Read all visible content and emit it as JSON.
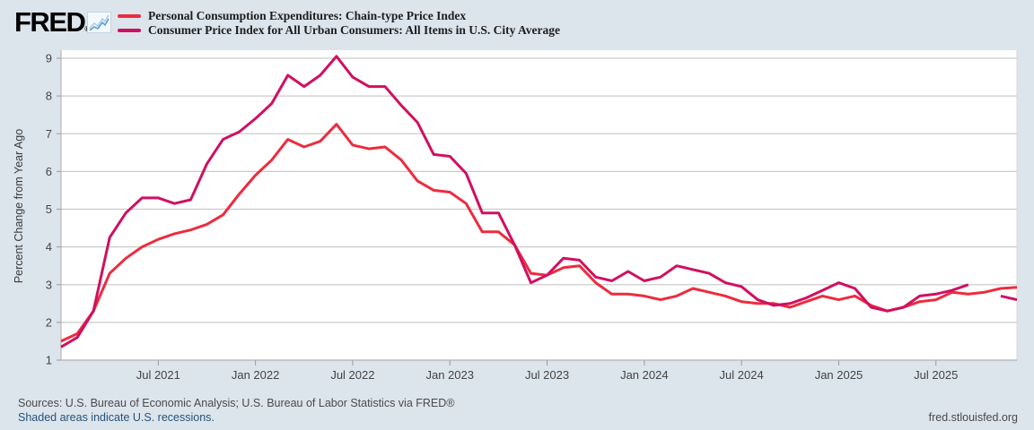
{
  "header": {
    "logo_text": "FRED",
    "registered_mark": "®"
  },
  "legend": {
    "items": [
      {
        "label": "Personal Consumption Expenditures: Chain-type Price Index",
        "color": "#ee2b3e"
      },
      {
        "label": "Consumer Price Index for All Urban Consumers: All Items in U.S. City Average",
        "color": "#d01060"
      }
    ]
  },
  "footer": {
    "sources": "Sources: U.S. Bureau of Economic Analysis; U.S. Bureau of Labor Statistics via FRED®",
    "recession_note": "Shaded areas indicate U.S. recessions.",
    "site": "fred.stlouisfed.org"
  },
  "chart_data": {
    "type": "line",
    "title": "",
    "xlabel": "",
    "ylabel": "Percent Change from Year Ago",
    "ylim": [
      1,
      9
    ],
    "y_ticks": [
      1,
      2,
      3,
      4,
      5,
      6,
      7,
      8,
      9
    ],
    "grid": true,
    "legend_position": "top-left",
    "x_start": "2021-01",
    "x_end": "2025-12",
    "x_frequency": "monthly",
    "x_tick_labels": [
      {
        "label": "Jul 2021",
        "month_index": 6
      },
      {
        "label": "Jan 2022",
        "month_index": 12
      },
      {
        "label": "Jul 2022",
        "month_index": 18
      },
      {
        "label": "Jan 2023",
        "month_index": 24
      },
      {
        "label": "Jul 2023",
        "month_index": 30
      },
      {
        "label": "Jan 2024",
        "month_index": 36
      },
      {
        "label": "Jul 2024",
        "month_index": 42
      },
      {
        "label": "Jan 2025",
        "month_index": 48
      },
      {
        "label": "Jul 2025",
        "month_index": 54
      }
    ],
    "series": [
      {
        "name": "Personal Consumption Expenditures: Chain-type Price Index",
        "color": "#ee2b3e",
        "values": [
          1.5,
          1.7,
          2.3,
          3.3,
          3.7,
          4.0,
          4.2,
          4.35,
          4.45,
          4.6,
          4.85,
          5.4,
          5.9,
          6.3,
          6.85,
          6.65,
          6.8,
          7.25,
          6.7,
          6.6,
          6.65,
          6.3,
          5.75,
          5.5,
          5.45,
          5.15,
          4.4,
          4.4,
          4.05,
          3.3,
          3.25,
          3.45,
          3.5,
          3.05,
          2.75,
          2.75,
          2.7,
          2.6,
          2.7,
          2.9,
          2.8,
          2.7,
          2.55,
          2.5,
          2.5,
          2.4,
          2.55,
          2.7,
          2.6,
          2.7,
          2.45,
          2.3,
          2.4,
          2.55,
          2.6,
          2.8,
          2.75,
          2.8,
          2.9,
          2.93
        ]
      },
      {
        "name": "Consumer Price Index for All Urban Consumers: All Items in U.S. City Average",
        "color": "#d01060",
        "values": [
          1.35,
          1.6,
          2.3,
          4.25,
          4.9,
          5.3,
          5.3,
          5.15,
          5.25,
          6.2,
          6.85,
          7.05,
          7.4,
          7.8,
          8.55,
          8.25,
          8.55,
          9.05,
          8.5,
          8.25,
          8.25,
          7.75,
          7.3,
          6.45,
          6.4,
          5.95,
          4.9,
          4.9,
          4.05,
          3.05,
          3.25,
          3.7,
          3.65,
          3.2,
          3.1,
          3.35,
          3.1,
          3.2,
          3.5,
          3.4,
          3.3,
          3.05,
          2.95,
          2.6,
          2.45,
          2.5,
          2.65,
          2.85,
          3.05,
          2.9,
          2.4,
          2.3,
          2.4,
          2.7,
          2.75,
          2.85,
          3.0,
          null,
          2.7,
          2.6
        ]
      }
    ]
  }
}
